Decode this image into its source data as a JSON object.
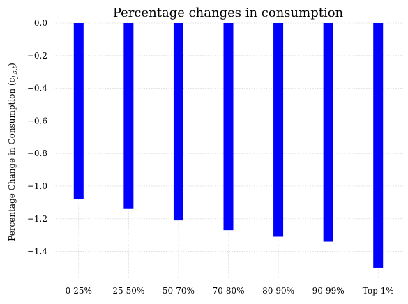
{
  "chart_data": {
    "type": "bar",
    "title": "Percentage changes in consumption",
    "xlabel": "",
    "ylabel": "Percentage Change in Consumption (c",
    "ylabel_subscript": "j,s,t",
    "ylabel_suffix": ")",
    "categories": [
      "0-25%",
      "25-50%",
      "50-70%",
      "70-80%",
      "80-90%",
      "90-99%",
      "Top 1%"
    ],
    "values": [
      -1.08,
      -1.14,
      -1.21,
      -1.27,
      -1.31,
      -1.34,
      -1.5
    ],
    "ylim": [
      -1.56,
      0.0
    ],
    "yticks": [
      0.0,
      -0.2,
      -0.4,
      -0.6,
      -0.8,
      -1.0,
      -1.2,
      -1.4
    ],
    "ytick_labels": [
      "0.0",
      "−0.2",
      "−0.4",
      "−0.6",
      "−0.8",
      "−1.0",
      "−1.2",
      "−1.4"
    ],
    "bar_color": "#0000ff",
    "grid": true
  }
}
